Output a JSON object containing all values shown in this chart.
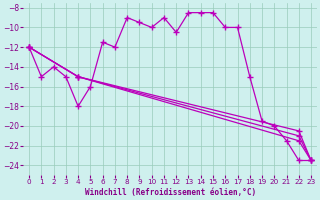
{
  "xlabel": "Windchill (Refroidissement éolien,°C)",
  "background_color": "#cff0ee",
  "grid_color": "#99ccbb",
  "line_color": "#bb00bb",
  "xlim": [
    -0.5,
    23.5
  ],
  "ylim": [
    -25,
    -7.5
  ],
  "yticks": [
    -24,
    -22,
    -20,
    -18,
    -16,
    -14,
    -12,
    -10,
    -8
  ],
  "xticks": [
    0,
    1,
    2,
    3,
    4,
    5,
    6,
    7,
    8,
    9,
    10,
    11,
    12,
    13,
    14,
    15,
    16,
    17,
    18,
    19,
    20,
    21,
    22,
    23
  ],
  "series": [
    {
      "x": [
        0,
        1,
        2,
        3,
        4,
        5,
        6,
        7,
        8,
        9,
        10,
        11,
        12,
        13,
        14,
        15,
        16,
        17,
        18,
        19,
        20,
        21,
        22,
        23
      ],
      "y": [
        -12,
        -15,
        -14,
        -15,
        -18,
        -16,
        -11.5,
        -12,
        -9,
        -9.5,
        -10,
        -9,
        -10.5,
        -8.5,
        -8.5,
        -8.5,
        -10,
        -10,
        -15,
        -19.5,
        -20,
        -21.5,
        -23.5,
        -23.5
      ]
    },
    {
      "x": [
        0,
        4,
        22,
        23
      ],
      "y": [
        -12,
        -15,
        -20.5,
        -23.5
      ]
    },
    {
      "x": [
        0,
        4,
        22,
        23
      ],
      "y": [
        -12,
        -15,
        -21,
        -23.5
      ]
    },
    {
      "x": [
        0,
        4,
        22,
        23
      ],
      "y": [
        -12,
        -15,
        -21.5,
        -23.5
      ]
    }
  ]
}
